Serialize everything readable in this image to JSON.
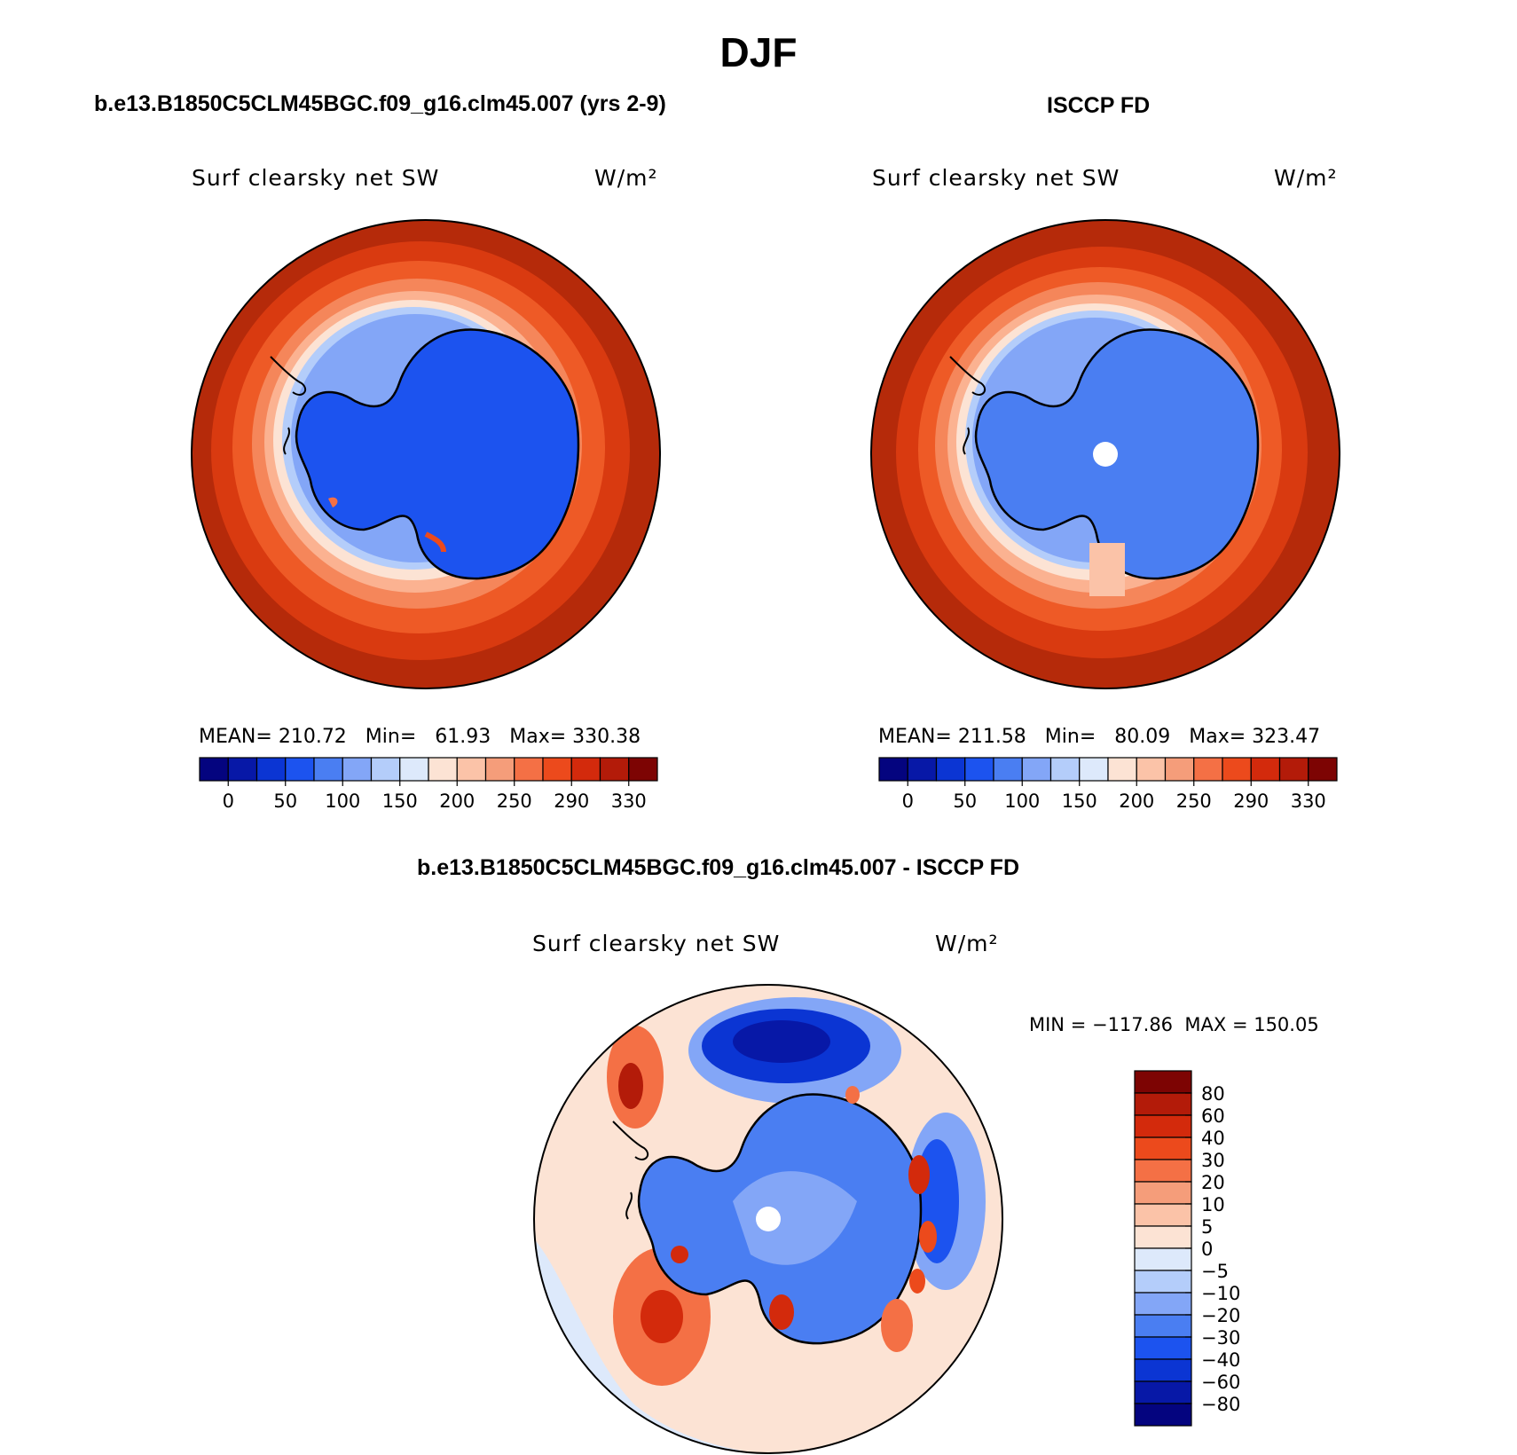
{
  "title": "DJF",
  "panels": [
    {
      "heading": "b.e13.B1850C5CLM45BGC.f09_g16.clm45.007 (yrs 2-9)",
      "variable": "Surf clearsky net SW",
      "units": "W/m²",
      "stats": {
        "mean_label": "MEAN=",
        "mean": "210.72",
        "min_label": "Min=",
        "min": "61.93",
        "max_label": "Max=",
        "max": "330.38"
      },
      "colorbar_labels": [
        "0",
        "50",
        "100",
        "150",
        "200",
        "250",
        "290",
        "330"
      ]
    },
    {
      "heading": "ISCCP FD",
      "variable": "Surf clearsky net SW",
      "units": "W/m²",
      "stats": {
        "mean_label": "MEAN=",
        "mean": "211.58",
        "min_label": "Min=",
        "min": "80.09",
        "max_label": "Max=",
        "max": "323.47"
      },
      "colorbar_labels": [
        "0",
        "50",
        "100",
        "150",
        "200",
        "250",
        "290",
        "330"
      ]
    }
  ],
  "difference": {
    "heading": "b.e13.B1850C5CLM45BGC.f09_g16.clm45.007 - ISCCP FD",
    "variable": "Surf clearsky net SW",
    "units": "W/m²",
    "minmax": "MIN = −117.86  MAX = 150.05",
    "colorbar_labels": [
      "80",
      "60",
      "40",
      "30",
      "20",
      "10",
      "5",
      "0",
      "−5",
      "−10",
      "−20",
      "−30",
      "−40",
      "−60",
      "−80"
    ]
  },
  "colors": {
    "abs_scale": [
      "#04047f",
      "#0718a7",
      "#0b35d3",
      "#1c53ef",
      "#4a7ef2",
      "#83a6f7",
      "#b4cdfa",
      "#dde9fb",
      "#fce3d4",
      "#fbc3a8",
      "#f59d7a",
      "#f47045",
      "#ec4a1c",
      "#d32a0c",
      "#b31b09",
      "#7d0403"
    ],
    "diff_scale": [
      "#7d0403",
      "#b31b09",
      "#d32a0c",
      "#ec4a1c",
      "#f47045",
      "#f59d7a",
      "#fbc3a8",
      "#fce3d4",
      "#dde9fb",
      "#b4cdfa",
      "#83a6f7",
      "#4a7ef2",
      "#1c53ef",
      "#0b35d3",
      "#0718a7",
      "#04047f"
    ]
  }
}
